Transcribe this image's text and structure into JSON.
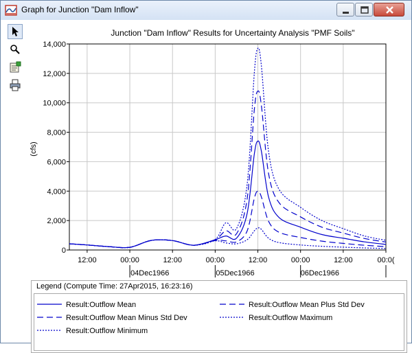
{
  "window": {
    "title": "Graph for Junction \"Dam Inflow\""
  },
  "toolbar": {
    "tools": [
      {
        "name": "select-tool",
        "icon": "pointer-arrow-icon"
      },
      {
        "name": "zoom-tool",
        "icon": "magnifier-icon"
      },
      {
        "name": "properties-tool",
        "icon": "properties-icon"
      },
      {
        "name": "print-tool",
        "icon": "printer-icon"
      }
    ]
  },
  "chart": {
    "title": "Junction \"Dam Inflow\" Results for Uncertainty Analysis \"PMF Soils\"",
    "ylabel": "(cfs)",
    "time_ticks": [
      "12:00",
      "00:00",
      "12:00",
      "00:00",
      "12:00",
      "00:00",
      "12:00",
      "00:0("
    ],
    "date_labels": [
      "04Dec1966",
      "05Dec1966",
      "06Dec1966"
    ]
  },
  "legend": {
    "title": "Legend (Compute Time: 27Apr2015, 16:23:16)",
    "items": [
      {
        "label": "Result:Outflow Mean",
        "style": "solid"
      },
      {
        "label": "Result:Outflow Mean Plus Std Dev",
        "style": "long-dash"
      },
      {
        "label": "Result:Outflow Mean Minus Std Dev",
        "style": "long-dash"
      },
      {
        "label": "Result:Outflow Maximum",
        "style": "dotted"
      },
      {
        "label": "Result:Outflow Minimum",
        "style": "dotted"
      }
    ]
  },
  "colors": {
    "series": "#0000cc",
    "grid": "#c8c8c8",
    "close_button": "#c74a3b"
  },
  "chart_data": {
    "type": "line",
    "title": "Junction \"Dam Inflow\" Results for Uncertainty Analysis \"PMF Soils\"",
    "xlabel": "",
    "ylabel": "(cfs)",
    "x": [
      "03Dec1966 07:00",
      "03Dec1966 12:00",
      "03Dec1966 18:00",
      "04Dec1966 00:00",
      "04Dec1966 06:00",
      "04Dec1966 12:00",
      "04Dec1966 18:00",
      "05Dec1966 00:00",
      "05Dec1966 03:00",
      "05Dec1966 06:00",
      "05Dec1966 09:00",
      "05Dec1966 11:00",
      "05Dec1966 12:00",
      "05Dec1966 13:00",
      "05Dec1966 15:00",
      "05Dec1966 18:00",
      "06Dec1966 00:00",
      "06Dec1966 06:00",
      "06Dec1966 12:00",
      "06Dec1966 18:00",
      "07Dec1966 00:00"
    ],
    "ylim": [
      0,
      14000
    ],
    "yticks": [
      0,
      2000,
      4000,
      6000,
      8000,
      10000,
      12000,
      14000
    ],
    "grid": true,
    "series": [
      {
        "name": "Result:Outflow Mean",
        "style": "solid",
        "values": [
          420,
          340,
          230,
          180,
          650,
          640,
          320,
          700,
          950,
          800,
          2500,
          6500,
          7400,
          6700,
          3600,
          2200,
          1550,
          1050,
          800,
          550,
          380
        ]
      },
      {
        "name": "Result:Outflow Mean Plus Std Dev",
        "style": "long-dash",
        "values": [
          420,
          340,
          230,
          180,
          650,
          640,
          320,
          700,
          1300,
          1100,
          3500,
          9500,
          10800,
          9800,
          5200,
          3200,
          2250,
          1550,
          1150,
          780,
          540
        ]
      },
      {
        "name": "Result:Outflow Mean Minus Std Dev",
        "style": "long-dash",
        "values": [
          420,
          340,
          230,
          180,
          650,
          640,
          320,
          650,
          620,
          550,
          1300,
          3500,
          4000,
          3600,
          1950,
          1200,
          850,
          600,
          450,
          320,
          230
        ]
      },
      {
        "name": "Result:Outflow Maximum",
        "style": "dotted",
        "values": [
          420,
          340,
          230,
          180,
          650,
          640,
          320,
          720,
          1850,
          1450,
          4500,
          12000,
          13700,
          12500,
          6700,
          4100,
          2900,
          2000,
          1450,
          950,
          660
        ]
      },
      {
        "name": "Result:Outflow Minimum",
        "style": "dotted",
        "values": [
          420,
          340,
          230,
          180,
          650,
          640,
          320,
          620,
          480,
          420,
          700,
          1300,
          1500,
          1400,
          800,
          500,
          340,
          250,
          190,
          140,
          100
        ]
      }
    ]
  }
}
